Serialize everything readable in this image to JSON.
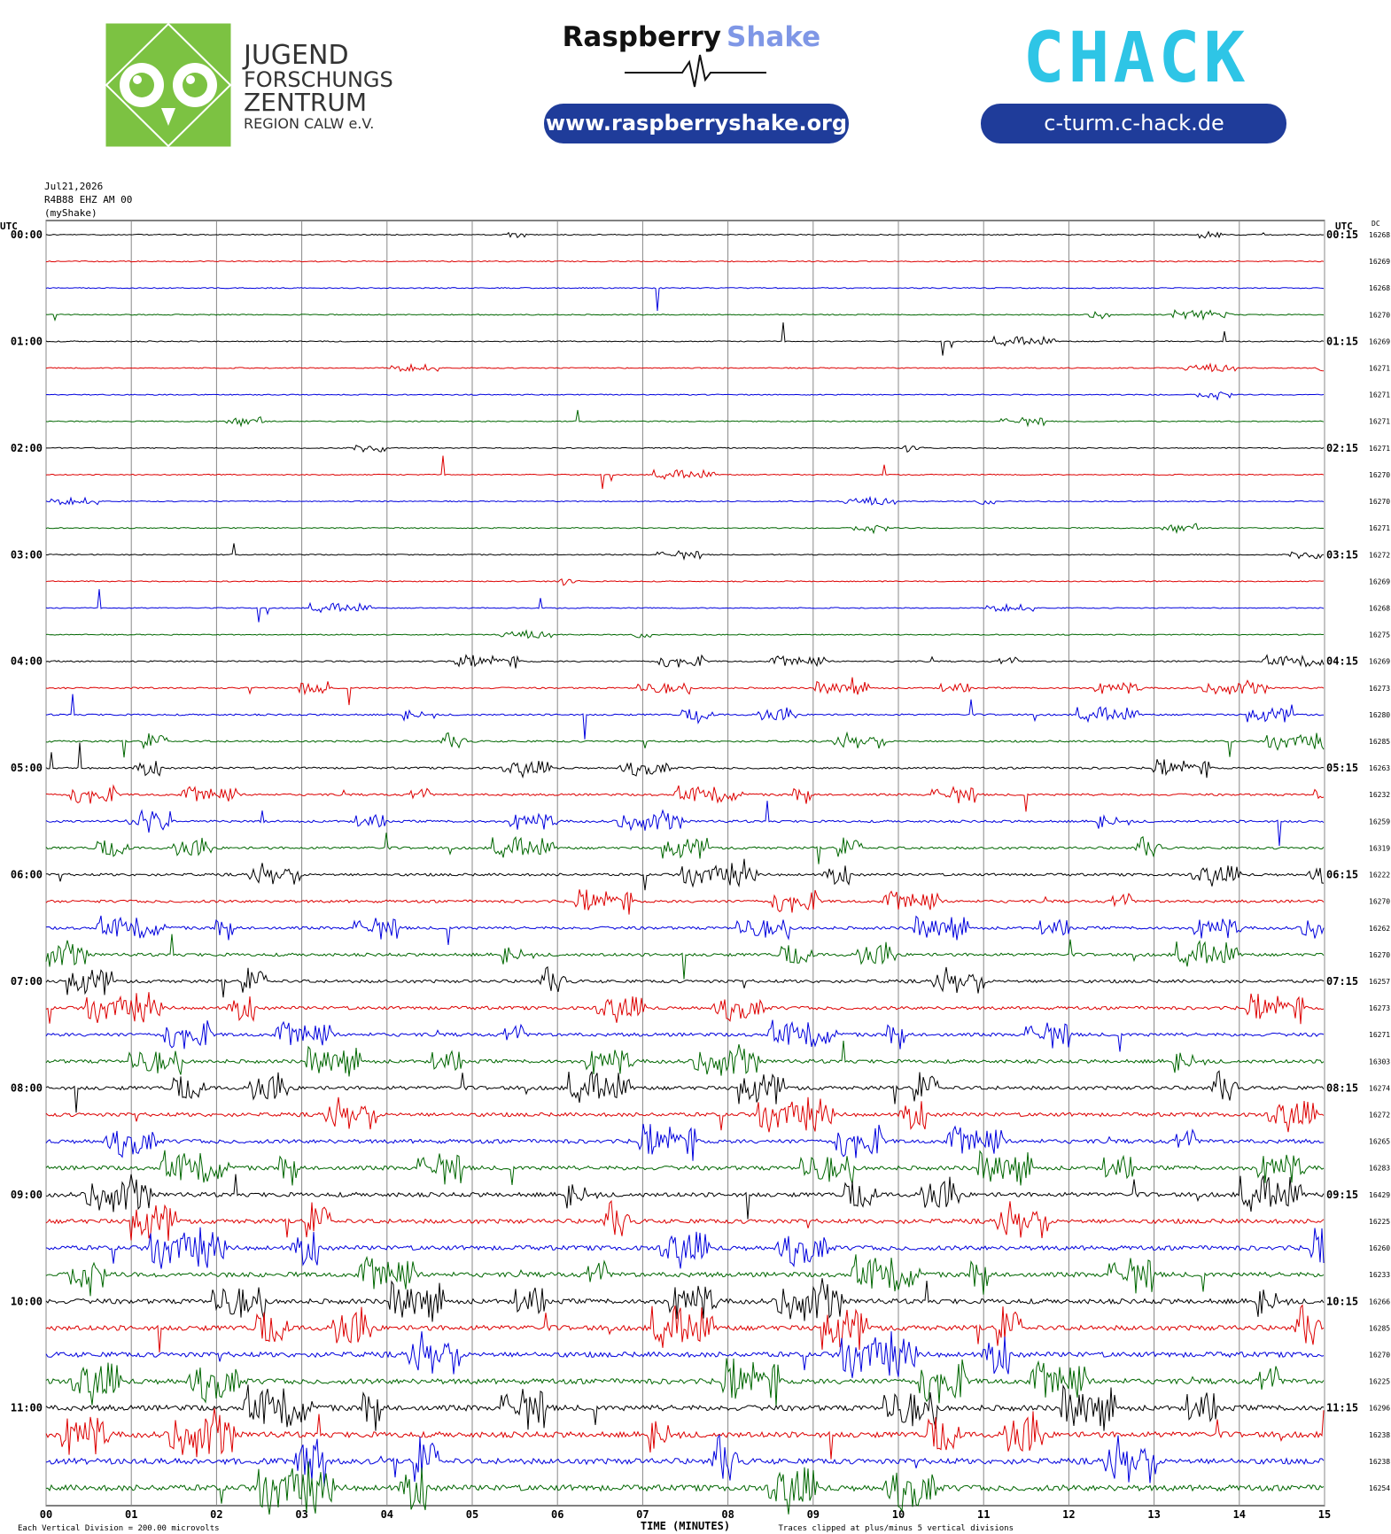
{
  "header": {
    "logo_lines": [
      "JUGEND",
      "FORSCHUNGS",
      "ZENTRUM",
      "REGION CALW e.V."
    ],
    "brand_left": "Raspberry",
    "brand_right": "Shake",
    "url_left": "www.raspberryshake.org",
    "chack": "CHACK",
    "url_right": "c-turm.c-hack.de"
  },
  "station": {
    "date": "Jul21,2026",
    "channel": "R4B88 EHZ AM 00",
    "source": "(myShake)"
  },
  "chart_data": {
    "type": "helicorder",
    "left_axis_title": "UTC",
    "right_axis_title": "UTC",
    "dc_title": "DC",
    "left_labels": [
      "00:00",
      "01:00",
      "02:00",
      "03:00",
      "04:00",
      "05:00",
      "06:00",
      "07:00",
      "08:00",
      "09:00",
      "10:00",
      "11:00"
    ],
    "right_labels": [
      "00:15",
      "01:15",
      "02:15",
      "03:15",
      "04:15",
      "05:15",
      "06:15",
      "07:15",
      "08:15",
      "09:15",
      "10:15",
      "11:15"
    ],
    "dc_values": [
      16268,
      16269,
      16268,
      16270,
      16269,
      16271,
      16271,
      16271,
      16271,
      16270,
      16270,
      16271,
      16272,
      16269,
      16268,
      16275,
      16269,
      16273,
      16280,
      16285,
      16263,
      16232,
      16259,
      16319,
      16222,
      16270,
      16262,
      16270,
      16257,
      16273,
      16271,
      16303,
      16274,
      16272,
      16265,
      16283,
      16429,
      16225,
      16260,
      16233,
      16266,
      16285,
      16270,
      16225,
      16296,
      16238,
      16238,
      16254
    ],
    "xlim": [
      0,
      15
    ],
    "xticks": [
      {
        "value": 0,
        "label": "00"
      },
      {
        "value": 1,
        "label": "01"
      },
      {
        "value": 2,
        "label": "02"
      },
      {
        "value": 3,
        "label": "03"
      },
      {
        "value": 4,
        "label": "04"
      },
      {
        "value": 5,
        "label": "05"
      },
      {
        "value": 6,
        "label": "06"
      },
      {
        "value": 7,
        "label": "07"
      },
      {
        "value": 8,
        "label": "08"
      },
      {
        "value": 9,
        "label": "09"
      },
      {
        "value": 10,
        "label": "10"
      },
      {
        "value": 11,
        "label": "11"
      },
      {
        "value": 12,
        "label": "12"
      },
      {
        "value": 13,
        "label": "13"
      },
      {
        "value": 14,
        "label": "14"
      },
      {
        "value": 15,
        "label": "15"
      }
    ],
    "xlabel": "TIME (MINUTES)",
    "footer_left": "Each Vertical Division =  200.00 microvolts",
    "footer_right": "Traces clipped at plus/minus 5 vertical divisions",
    "colors": [
      "#000000",
      "#dd0000",
      "#0000dd",
      "#006600"
    ],
    "grid": true
  }
}
